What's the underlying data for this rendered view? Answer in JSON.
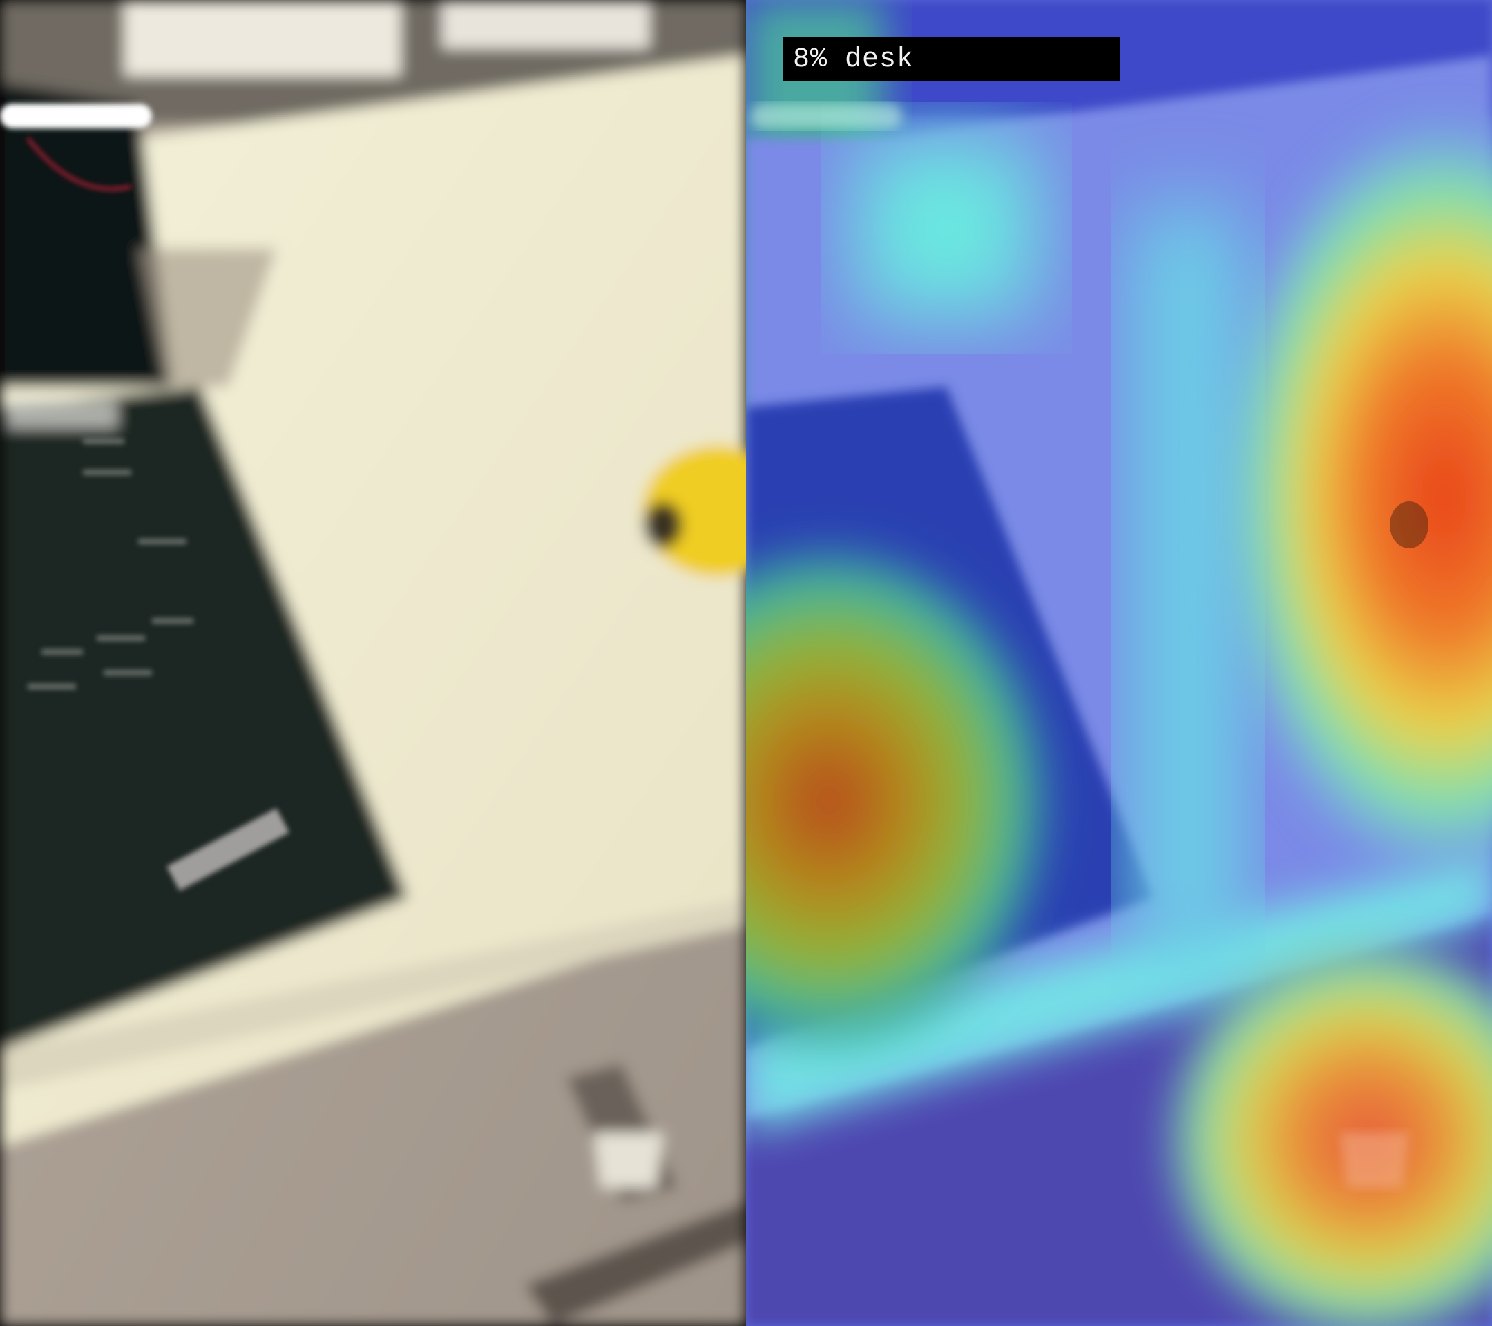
{
  "original_panel": {
    "description_icon": "scene-photo-icon"
  },
  "heatmap_panel": {
    "overlay_label": "8% desk",
    "colormap": "jet"
  },
  "colors": {
    "desk": "#eeeacd",
    "floor": "#a89d92",
    "laptop": "#1f2622",
    "banana": "#f2cf25",
    "heat_low": "#3c3cd0",
    "heat_high": "#e03a18"
  }
}
